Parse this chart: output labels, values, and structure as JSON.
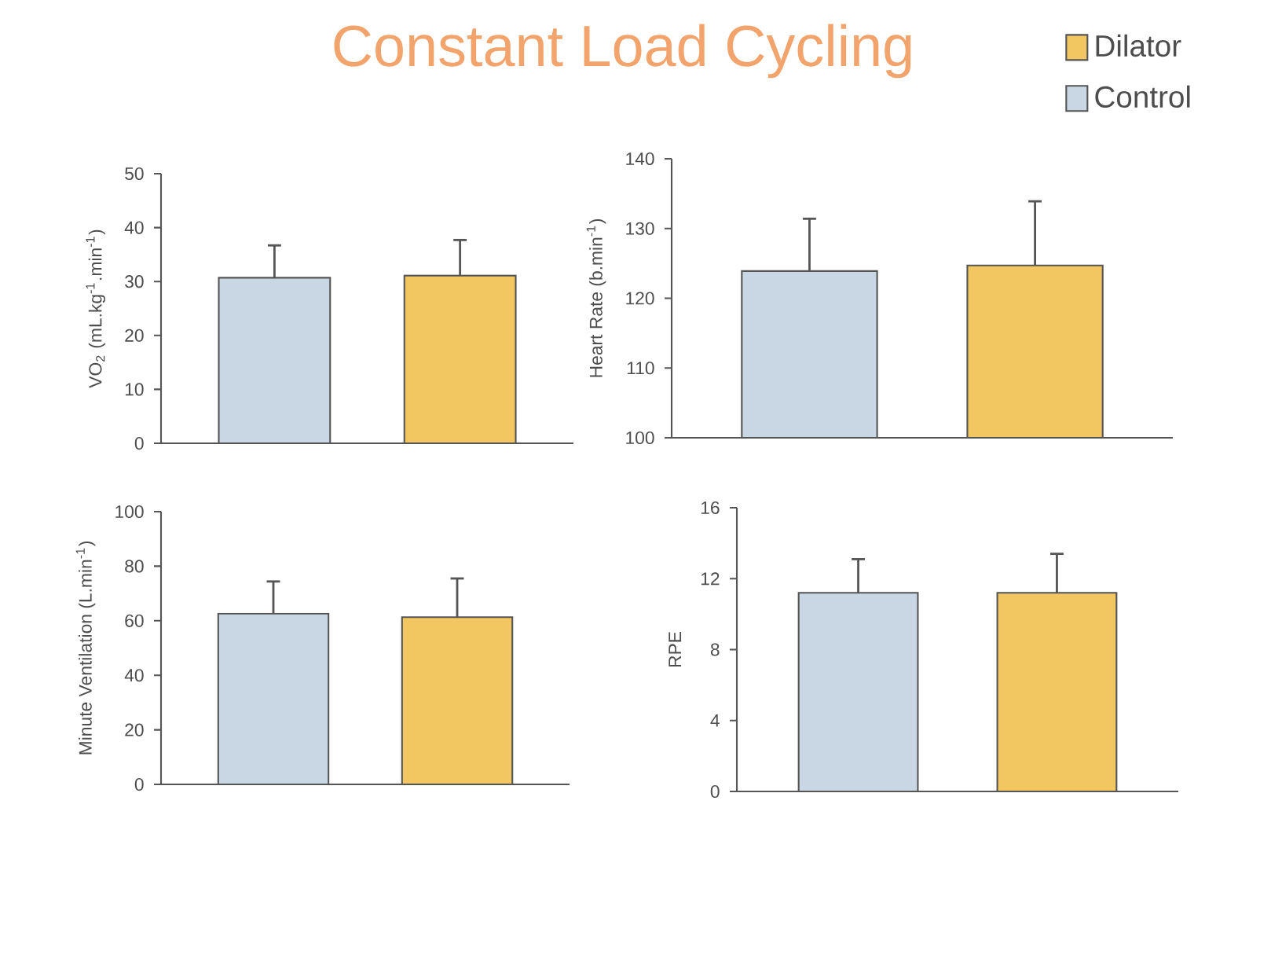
{
  "chart_data": [
    {
      "type": "bar",
      "title": "Constant Load Cycling",
      "ylabel": "VO$_{2}$ (mL.kg$^{-1}$.min$^{-1}$)",
      "categories": [
        null
      ],
      "series": [
        {
          "color": "#c8d7e3",
          "values": [
            30.7
          ],
          "errors": [
            [
              30.7,
              36.7
            ]
          ]
        },
        {
          "color": "#f2c661",
          "values": [
            31.1
          ],
          "errors": [
            [
              31.1,
              37.7
            ]
          ]
        }
      ],
      "ylim": [
        0,
        50
      ],
      "yticks": [
        0,
        10,
        20,
        30,
        40,
        50
      ],
      "tick_labels": "y"
    },
    {
      "type": "bar",
      "ylabel": "Heart Rate (b.min$^{-1}$)",
      "categories": [
        null
      ],
      "series": [
        {
          "name": "Control",
          "color": "#c8d7e3",
          "values": [
            123.9
          ],
          "errors": [
            [
              123.9,
              131.4
            ]
          ]
        },
        {
          "name": "Dilator",
          "color": "#f2c661",
          "values": [
            124.7
          ],
          "errors": [
            [
              124.7,
              133.9
            ]
          ]
        }
      ],
      "ylim": [
        100,
        140
      ],
      "yticks": [
        100,
        110,
        120,
        130,
        140
      ],
      "tick_labels": "y",
      "legend": "top right"
    },
    {
      "type": "bar",
      "ylabel": "Minute Ventilation (L.min$^{-1}$)",
      "categories": [
        null
      ],
      "series": [
        {
          "color": "#c8d7e3",
          "values": [
            62.6
          ],
          "errors": [
            [
              62.6,
              74.4
            ]
          ]
        },
        {
          "color": "#f2c661",
          "values": [
            61.3
          ],
          "errors": [
            [
              61.3,
              75.5
            ]
          ]
        }
      ],
      "ylim": [
        0,
        100
      ],
      "yticks": [
        0,
        20,
        40,
        60,
        80,
        100
      ],
      "tick_labels": "y"
    },
    {
      "type": "bar",
      "ylabel": "RPE",
      "categories": [
        null
      ],
      "series": [
        {
          "color": "#c8d7e3",
          "values": [
            11.2
          ],
          "errors": [
            [
              11.2,
              13.1
            ]
          ]
        },
        {
          "color": "#f2c661",
          "values": [
            11.2
          ],
          "errors": [
            [
              11.2,
              13.4
            ]
          ]
        }
      ],
      "ylim": [
        0,
        16
      ],
      "yticks": [
        0,
        4,
        8,
        12,
        16
      ],
      "tick_labels": "y"
    }
  ]
}
